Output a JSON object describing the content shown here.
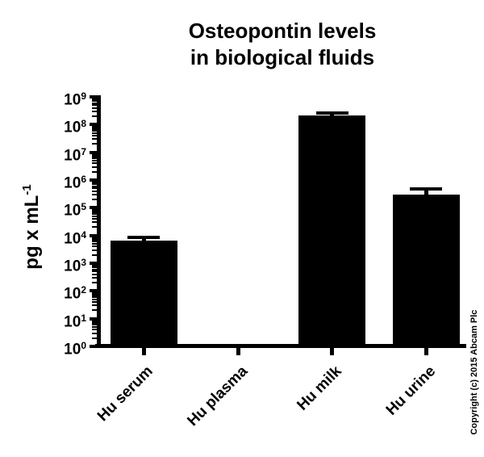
{
  "page": {
    "background": "#ffffff",
    "foreground": "#000000"
  },
  "title": {
    "line1": "Osteopontin levels",
    "line2": "in biological fluids"
  },
  "watermark": "Copyright (c) 2015 Abcam Plc",
  "chart_data": {
    "type": "bar",
    "title": "Osteopontin levels in biological fluids",
    "ylabel_base": "pg x mL",
    "ylabel_exponent": "-1",
    "xlabel": "",
    "yscale": "log",
    "ylim": [
      1,
      1000000000
    ],
    "y_tick_base": "10",
    "y_tick_exponents": [
      0,
      1,
      2,
      3,
      4,
      5,
      6,
      7,
      8,
      9
    ],
    "y_minor_tick_multiples": [
      2,
      3,
      4,
      5,
      6,
      7,
      8,
      9
    ],
    "categories": [
      "Hu serum",
      "Hu plasma",
      "Hu milk",
      "Hu urine"
    ],
    "values": [
      6500,
      null,
      210000000,
      300000
    ],
    "error_top": [
      8500,
      null,
      260000000,
      490000
    ],
    "bar_color": "#000000",
    "axis_color": "#000000",
    "grid": false,
    "legend": false
  }
}
